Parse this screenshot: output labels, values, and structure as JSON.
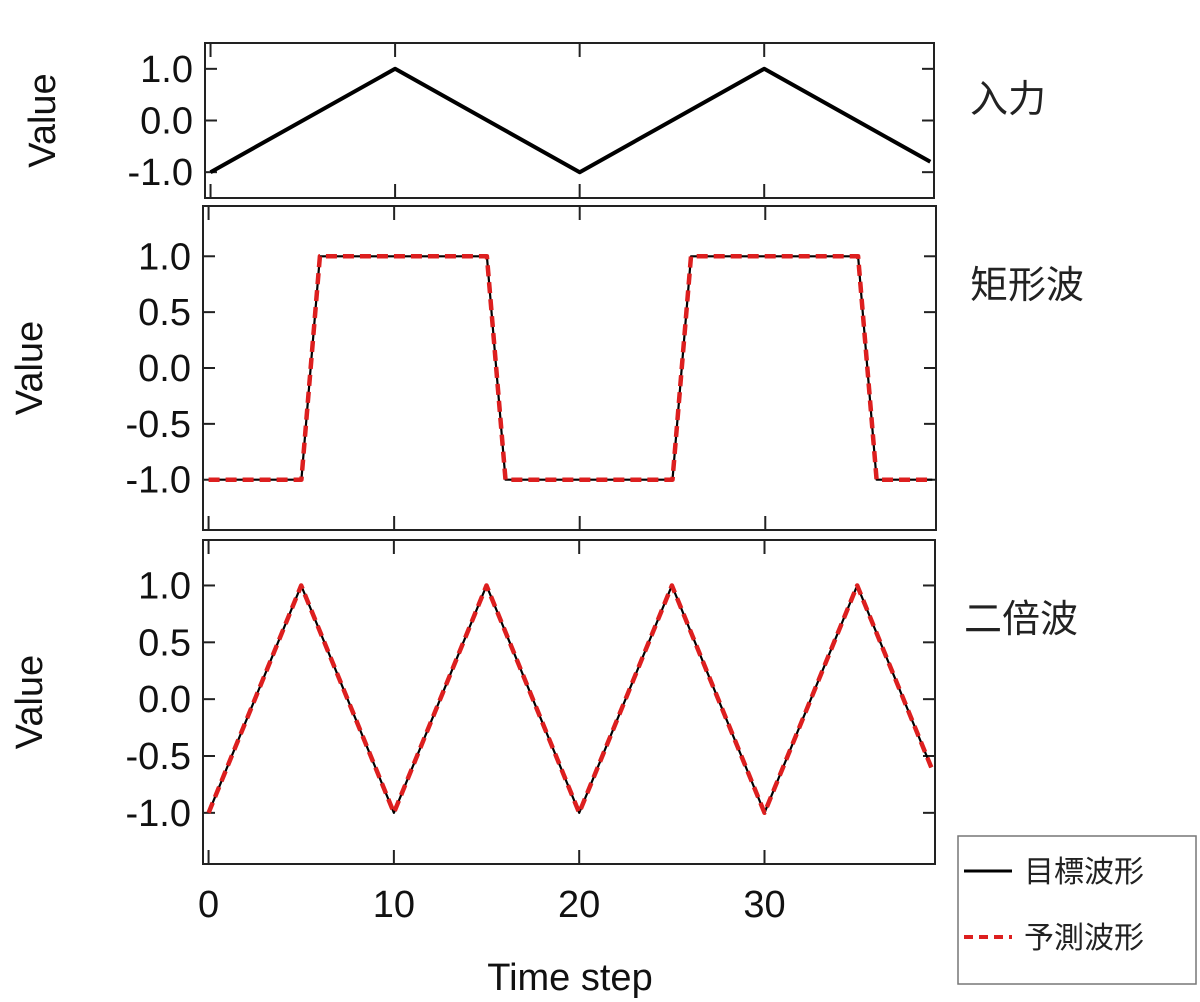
{
  "chart_data": [
    {
      "type": "line",
      "panel_label": "入力",
      "ylabel": "Value",
      "xlim": [
        -0.3,
        39.2
      ],
      "ylim": [
        -1.5,
        1.5
      ],
      "yticks": [
        1.0,
        0.0,
        -1.0
      ],
      "ytick_labels": [
        "1.0",
        "0.0",
        "-1.0"
      ],
      "xticks": [
        0,
        10,
        20,
        30
      ],
      "series": [
        {
          "x": [
            0,
            10,
            20,
            30,
            39
          ],
          "y": [
            -1.0,
            1.0,
            -1.0,
            1.0,
            -0.8
          ]
        }
      ]
    },
    {
      "type": "line",
      "panel_label": "矩形波",
      "ylabel": "Value",
      "xlim": [
        -0.3,
        39.2
      ],
      "ylim": [
        -1.45,
        1.45
      ],
      "yticks": [
        1.0,
        0.5,
        0.0,
        -0.5,
        -1.0
      ],
      "ytick_labels": [
        "1.0",
        "0.5",
        "0.0",
        "-0.5",
        "-1.0"
      ],
      "xticks": [
        0,
        10,
        20,
        30
      ],
      "series": [
        {
          "name": "目標波形",
          "x": [
            0,
            5,
            6,
            15,
            16,
            25,
            26,
            35,
            36,
            39
          ],
          "y": [
            -1,
            -1,
            1,
            1,
            -1,
            -1,
            1,
            1,
            -1,
            -1
          ]
        },
        {
          "name": "予測波形",
          "x": [
            0,
            5,
            6,
            15,
            16,
            25,
            26,
            35,
            36,
            39
          ],
          "y": [
            -1,
            -1,
            1,
            1,
            -1,
            -1,
            1,
            1,
            -1,
            -1
          ]
        }
      ]
    },
    {
      "type": "line",
      "panel_label": "二倍波",
      "ylabel": "Value",
      "xlabel": "Time step",
      "xlim": [
        -0.3,
        39.2
      ],
      "ylim": [
        -1.45,
        1.4
      ],
      "yticks": [
        1.0,
        0.5,
        0.0,
        -0.5,
        -1.0
      ],
      "ytick_labels": [
        "1.0",
        "0.5",
        "0.0",
        "-0.5",
        "-1.0"
      ],
      "xticks": [
        0,
        10,
        20,
        30
      ],
      "xtick_labels": [
        "0",
        "10",
        "20",
        "30"
      ],
      "series": [
        {
          "name": "目標波形",
          "x": [
            0,
            5,
            10,
            15,
            20,
            25,
            30,
            35,
            39
          ],
          "y": [
            -1,
            1,
            -1,
            1,
            -1,
            1,
            -1,
            1,
            -0.6
          ]
        },
        {
          "name": "予測波形",
          "x": [
            0,
            5,
            10,
            15,
            20,
            25,
            30,
            35,
            39
          ],
          "y": [
            -1,
            1,
            -1,
            1,
            -1,
            1,
            -1,
            1,
            -0.6
          ]
        }
      ]
    }
  ],
  "legend": {
    "entries": [
      {
        "label": "目標波形",
        "style": "solid",
        "color": "#000000"
      },
      {
        "label": "予測波形",
        "style": "dashed",
        "color": "#dd1f1f"
      }
    ]
  },
  "colors": {
    "target": "#000000",
    "prediction": "#dd1f1f",
    "frame": "#222222"
  }
}
